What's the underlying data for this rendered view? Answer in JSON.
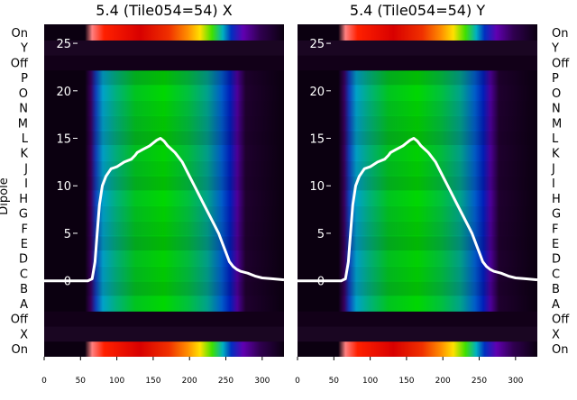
{
  "chart_data": [
    {
      "type": "heatmap",
      "title": "5.4 (Tile054=54) X",
      "ylabel": "Dipole",
      "xlim": [
        0,
        330
      ],
      "x_ticks": [
        0,
        50,
        100,
        150,
        200,
        250,
        300
      ],
      "y_categories": [
        "On",
        "X",
        "Off",
        "A",
        "B",
        "C",
        "D",
        "E",
        "F",
        "G",
        "H",
        "I",
        "J",
        "K",
        "L",
        "M",
        "N",
        "O",
        "P",
        "Off",
        "Y",
        "On"
      ],
      "overlay_ylim": [
        -8,
        27
      ],
      "overlay_y_ticks": [
        0,
        5,
        10,
        15,
        20,
        25
      ],
      "overlay_line": {
        "color": "#ffffff",
        "points": [
          [
            0,
            0
          ],
          [
            60,
            0
          ],
          [
            66,
            0.2
          ],
          [
            70,
            2
          ],
          [
            73,
            5
          ],
          [
            76,
            8
          ],
          [
            80,
            10
          ],
          [
            85,
            11
          ],
          [
            92,
            11.8
          ],
          [
            100,
            12
          ],
          [
            110,
            12.5
          ],
          [
            120,
            12.8
          ],
          [
            125,
            13.2
          ],
          [
            128,
            13.5
          ],
          [
            135,
            13.8
          ],
          [
            145,
            14.2
          ],
          [
            155,
            14.8
          ],
          [
            160,
            15
          ],
          [
            165,
            14.7
          ],
          [
            170,
            14.2
          ],
          [
            180,
            13.5
          ],
          [
            190,
            12.5
          ],
          [
            200,
            11
          ],
          [
            210,
            9.5
          ],
          [
            220,
            8
          ],
          [
            230,
            6.5
          ],
          [
            240,
            5
          ],
          [
            245,
            4
          ],
          [
            250,
            3
          ],
          [
            255,
            2
          ],
          [
            260,
            1.5
          ],
          [
            265,
            1.2
          ],
          [
            270,
            1
          ],
          [
            280,
            0.8
          ],
          [
            290,
            0.5
          ],
          [
            300,
            0.3
          ],
          [
            315,
            0.2
          ],
          [
            330,
            0.1
          ]
        ]
      }
    },
    {
      "type": "heatmap",
      "title": "5.4 (Tile054=54) Y",
      "xlim": [
        0,
        330
      ],
      "x_ticks": [
        0,
        50,
        100,
        150,
        200,
        250,
        300
      ],
      "y_categories": [
        "On",
        "X",
        "Off",
        "A",
        "B",
        "C",
        "D",
        "E",
        "F",
        "G",
        "H",
        "I",
        "J",
        "K",
        "L",
        "M",
        "N",
        "O",
        "P",
        "Off",
        "Y",
        "On"
      ],
      "overlay_ylim": [
        -8,
        27
      ],
      "overlay_y_ticks": [
        0,
        5,
        10,
        15,
        20,
        25
      ],
      "overlay_line": {
        "color": "#ffffff",
        "points": [
          [
            0,
            0
          ],
          [
            60,
            0
          ],
          [
            66,
            0.2
          ],
          [
            70,
            2
          ],
          [
            73,
            5
          ],
          [
            76,
            8
          ],
          [
            80,
            10
          ],
          [
            85,
            11
          ],
          [
            92,
            11.8
          ],
          [
            100,
            12
          ],
          [
            110,
            12.5
          ],
          [
            120,
            12.8
          ],
          [
            125,
            13.2
          ],
          [
            128,
            13.5
          ],
          [
            135,
            13.8
          ],
          [
            145,
            14.2
          ],
          [
            155,
            14.8
          ],
          [
            160,
            15
          ],
          [
            165,
            14.7
          ],
          [
            170,
            14.2
          ],
          [
            180,
            13.5
          ],
          [
            190,
            12.5
          ],
          [
            200,
            11
          ],
          [
            210,
            9.5
          ],
          [
            220,
            8
          ],
          [
            230,
            6.5
          ],
          [
            240,
            5
          ],
          [
            245,
            4
          ],
          [
            250,
            3
          ],
          [
            255,
            2
          ],
          [
            260,
            1.5
          ],
          [
            265,
            1.2
          ],
          [
            270,
            1
          ],
          [
            280,
            0.8
          ],
          [
            290,
            0.5
          ],
          [
            300,
            0.3
          ],
          [
            315,
            0.2
          ],
          [
            330,
            0.1
          ]
        ]
      }
    }
  ],
  "left_axis_labels": [
    "On",
    "Y",
    "Off",
    "P",
    "O",
    "N",
    "M",
    "L",
    "K",
    "J",
    "I",
    "H",
    "G",
    "F",
    "E",
    "D",
    "C",
    "B",
    "A",
    "Off",
    "X",
    "On"
  ],
  "right_axis_labels": [
    "On",
    "Y",
    "Off",
    "P",
    "O",
    "N",
    "M",
    "L",
    "K",
    "J",
    "I",
    "H",
    "G",
    "F",
    "E",
    "D",
    "C",
    "B",
    "A",
    "Off",
    "X",
    "On"
  ]
}
